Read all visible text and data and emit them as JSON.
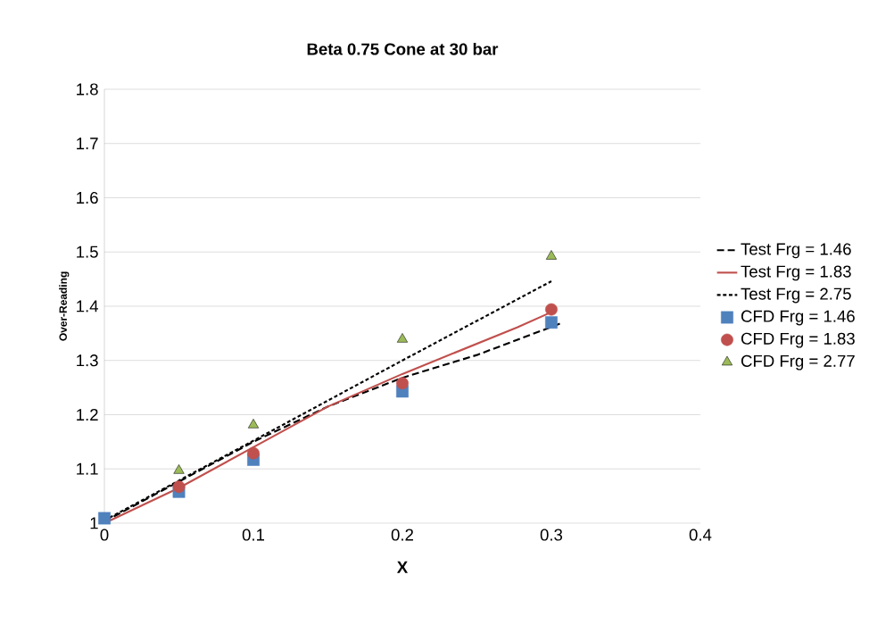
{
  "chart_data": {
    "type": "line",
    "title": "Beta 0.75 Cone at 30 bar",
    "xlabel": "X",
    "ylabel": "Over-Reading",
    "xlim": [
      0,
      0.4
    ],
    "xticks": [
      0,
      0.1,
      0.2,
      0.3,
      0.4
    ],
    "ylim": [
      1,
      1.8
    ],
    "yticks": [
      1,
      1.1,
      1.2,
      1.3,
      1.4,
      1.5,
      1.6,
      1.7,
      1.8
    ],
    "grid": "y",
    "legend": "right",
    "series": [
      {
        "name": "Test Frg = 1.46",
        "color": "#000000",
        "line_style": "dashed",
        "marker": "none",
        "x": [
          0,
          0.1,
          0.15,
          0.2,
          0.25,
          0.307
        ],
        "values": [
          1.003,
          1.15,
          1.215,
          1.268,
          1.31,
          1.369
        ]
      },
      {
        "name": "Test Frg = 1.83",
        "color": "#c0504d",
        "line_style": "solid",
        "marker": "none",
        "x": [
          0,
          0.05,
          0.1,
          0.15,
          0.2,
          0.277,
          0.3
        ],
        "values": [
          1.0,
          1.065,
          1.14,
          1.215,
          1.275,
          1.361,
          1.389
        ]
      },
      {
        "name": "Test Frg = 2.75",
        "color": "#000000",
        "line_style": "dotted",
        "marker": "none",
        "x": [
          0,
          0.1,
          0.2,
          0.3
        ],
        "values": [
          1.005,
          1.152,
          1.3,
          1.446
        ]
      },
      {
        "name": "CFD Frg = 1.46",
        "type": "scatter",
        "color": "#4f81bd",
        "marker": "square",
        "x": [
          0,
          0.05,
          0.1,
          0.2,
          0.3
        ],
        "values": [
          1.009,
          1.058,
          1.117,
          1.243,
          1.37
        ]
      },
      {
        "name": "CFD Frg = 1.83",
        "type": "scatter",
        "color": "#c0504d",
        "marker": "circle",
        "x": [
          0.05,
          0.1,
          0.2,
          0.3
        ],
        "values": [
          1.067,
          1.129,
          1.258,
          1.394
        ]
      },
      {
        "name": "CFD Frg = 2.77",
        "type": "scatter",
        "color": "#9bbb59",
        "marker": "triangle",
        "x": [
          0.05,
          0.1,
          0.2,
          0.3
        ],
        "values": [
          1.097,
          1.181,
          1.339,
          1.492
        ]
      }
    ]
  }
}
